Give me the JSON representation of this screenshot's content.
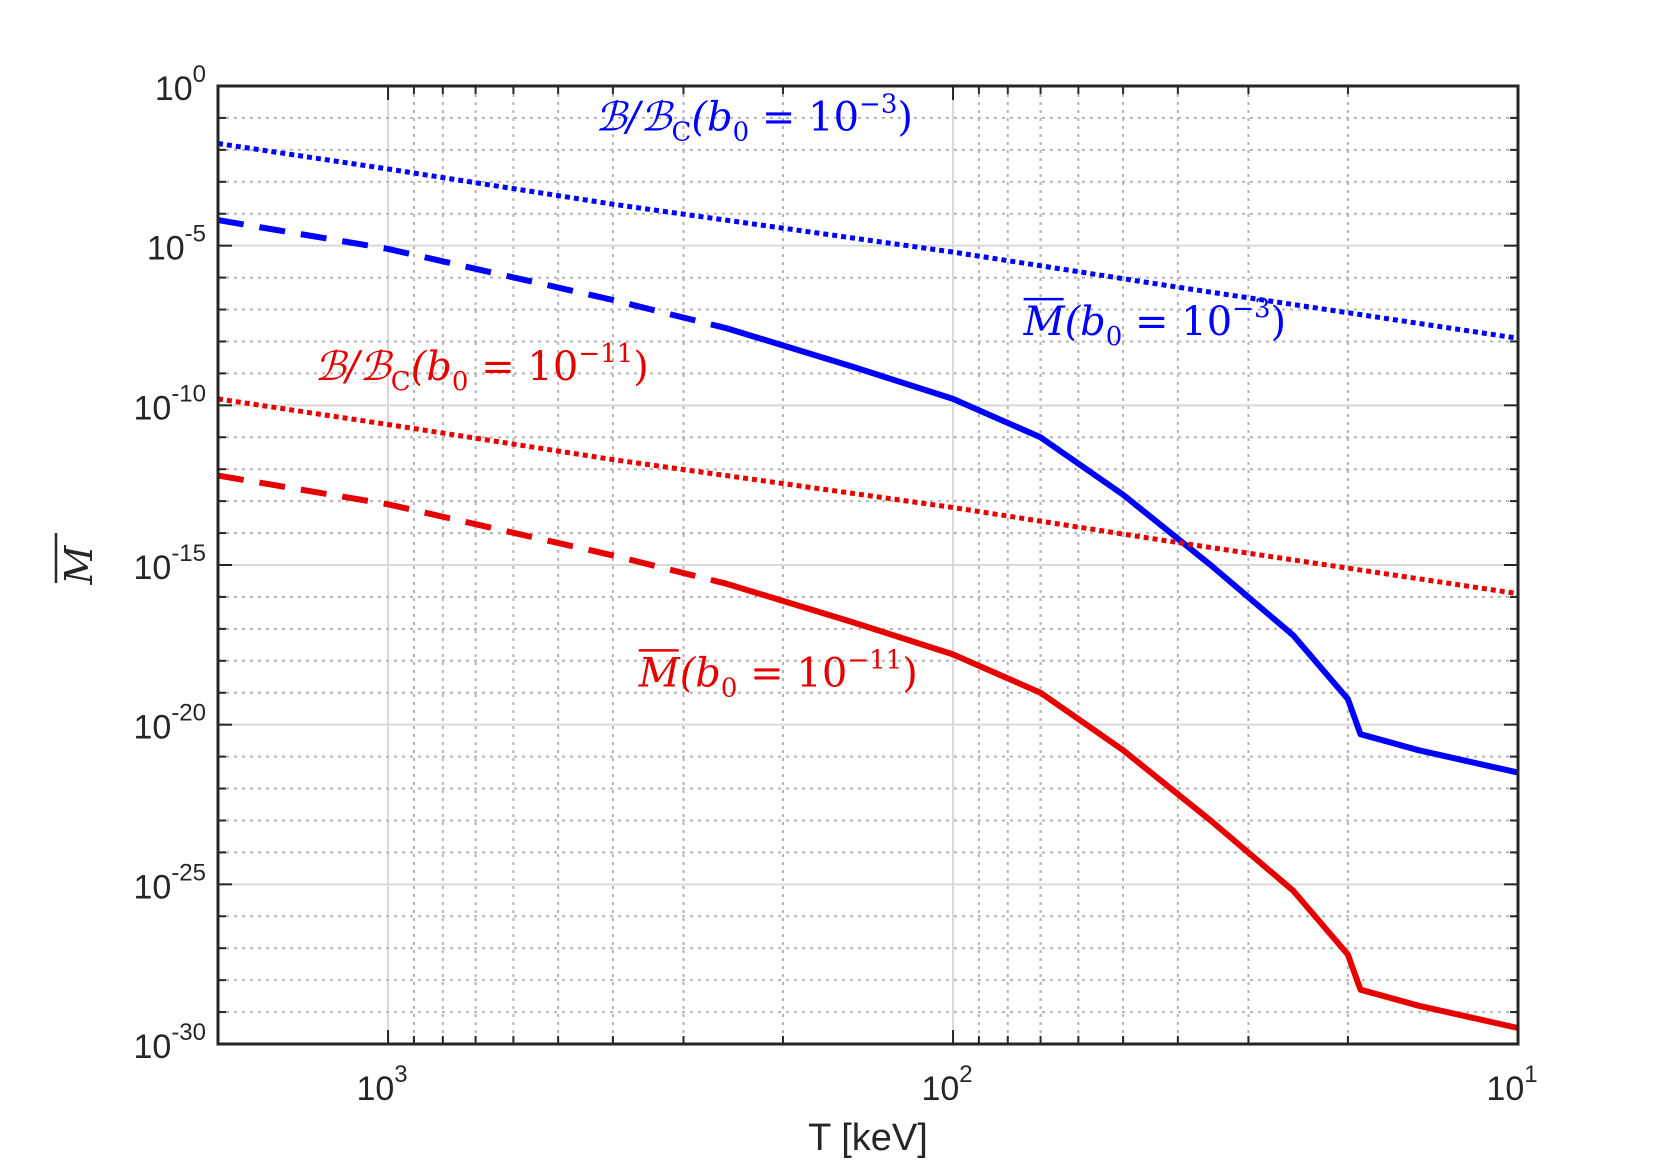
{
  "chart_data": {
    "type": "line",
    "xscale": "log",
    "yscale": "log",
    "x_reversed": true,
    "xlim": [
      2000,
      10
    ],
    "ylim_exponent": [
      -30,
      0
    ],
    "xlabel": "T [keV]",
    "ylabel": "M̅",
    "x_ticks": [
      {
        "value": 1000,
        "base": "10",
        "exp": "3"
      },
      {
        "value": 100,
        "base": "10",
        "exp": "2"
      },
      {
        "value": 10,
        "base": "10",
        "exp": "1"
      }
    ],
    "y_ticks": [
      {
        "exp_value": 0,
        "base": "10",
        "exp": "0"
      },
      {
        "exp_value": -5,
        "base": "10",
        "exp": "-5"
      },
      {
        "exp_value": -10,
        "base": "10",
        "exp": "-10"
      },
      {
        "exp_value": -15,
        "base": "10",
        "exp": "-15"
      },
      {
        "exp_value": -20,
        "base": "10",
        "exp": "-20"
      },
      {
        "exp_value": -25,
        "base": "10",
        "exp": "-25"
      },
      {
        "exp_value": -30,
        "base": "10",
        "exp": "-30"
      }
    ],
    "grid": true,
    "series": [
      {
        "name": "B/BC (b0 = 10^-3)",
        "color": "#0000ff",
        "style": "dotted",
        "points": [
          [
            2000,
            -1.8
          ],
          [
            1000,
            -2.6
          ],
          [
            400,
            -3.7
          ],
          [
            100,
            -5.2
          ],
          [
            40,
            -6.3
          ],
          [
            10,
            -7.9
          ]
        ]
      },
      {
        "name": "M̅ (b0 = 10^-3)",
        "color": "#0000ff",
        "style": "dashed",
        "points": [
          [
            2000,
            -4.2
          ],
          [
            1000,
            -5.1
          ],
          [
            400,
            -6.7
          ],
          [
            250,
            -7.6
          ]
        ]
      },
      {
        "name": "M̅ (b0 = 10^-3)",
        "color": "#0000ff",
        "style": "solid",
        "points": [
          [
            250,
            -7.6
          ],
          [
            150,
            -8.8
          ],
          [
            100,
            -9.8
          ],
          [
            70,
            -11.0
          ],
          [
            50,
            -12.8
          ],
          [
            35,
            -15.0
          ],
          [
            25,
            -17.2
          ],
          [
            20,
            -19.2
          ],
          [
            19,
            -20.3
          ],
          [
            15,
            -20.8
          ],
          [
            10,
            -21.5
          ]
        ]
      },
      {
        "name": "B/BC (b0 = 10^-11)",
        "color": "#e60000",
        "style": "dotted",
        "points": [
          [
            2000,
            -9.8
          ],
          [
            1000,
            -10.6
          ],
          [
            400,
            -11.7
          ],
          [
            100,
            -13.2
          ],
          [
            40,
            -14.3
          ],
          [
            10,
            -15.9
          ]
        ]
      },
      {
        "name": "M̅ (b0 = 10^-11)",
        "color": "#e60000",
        "style": "dashed",
        "points": [
          [
            2000,
            -12.2
          ],
          [
            1000,
            -13.1
          ],
          [
            400,
            -14.7
          ],
          [
            250,
            -15.6
          ]
        ]
      },
      {
        "name": "M̅ (b0 = 10^-11)",
        "color": "#e60000",
        "style": "solid",
        "points": [
          [
            250,
            -15.6
          ],
          [
            150,
            -16.8
          ],
          [
            100,
            -17.8
          ],
          [
            70,
            -19.0
          ],
          [
            50,
            -20.8
          ],
          [
            35,
            -23.0
          ],
          [
            25,
            -25.2
          ],
          [
            20,
            -27.2
          ],
          [
            19,
            -28.3
          ],
          [
            15,
            -28.8
          ],
          [
            10,
            -29.5
          ]
        ]
      }
    ],
    "annotations": [
      {
        "key": "ratio_blue",
        "color": "#0000ff",
        "head": "ℬ/ℬ",
        "sub1": "C",
        "mid": "(b",
        "sub2": "0",
        "eq": " = 10",
        "sup": "−3",
        "tail": ")",
        "bar": false,
        "at": [
          430,
          -1.4
        ]
      },
      {
        "key": "mag_blue",
        "color": "#0000ff",
        "head": "M",
        "sub1": "",
        "mid": "(b",
        "sub2": "0",
        "eq": " = 10",
        "sup": "−3",
        "tail": ")",
        "bar": true,
        "at": [
          75,
          -7.8
        ]
      },
      {
        "key": "ratio_red",
        "color": "#e60000",
        "head": "ℬ/ℬ",
        "sub1": "C",
        "mid": "(b",
        "sub2": "0",
        "eq": " = 10",
        "sup": "−11",
        "tail": ")",
        "bar": false,
        "at": [
          1350,
          -9.2
        ]
      },
      {
        "key": "mag_red",
        "color": "#e60000",
        "head": "M",
        "sub1": "",
        "mid": "(b",
        "sub2": "0",
        "eq": " = 10",
        "sup": "−11",
        "tail": ")",
        "bar": true,
        "at": [
          360,
          -18.8
        ]
      }
    ]
  }
}
